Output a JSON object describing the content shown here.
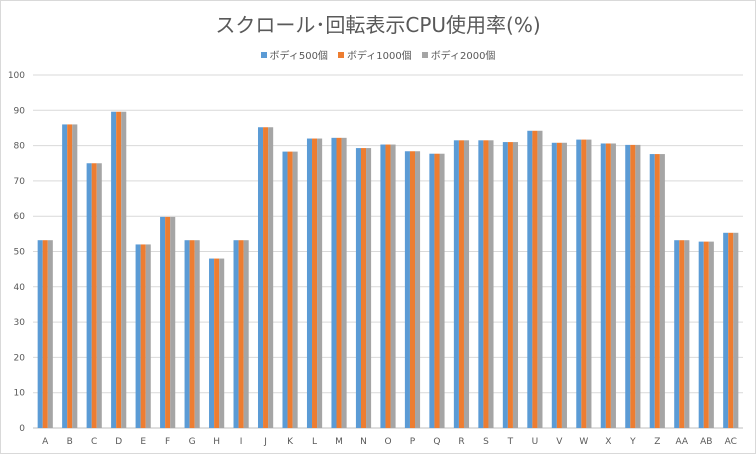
{
  "chart_data": {
    "type": "bar",
    "title": "スクロール･回転表示CPU使用率(%)",
    "categories": [
      "A",
      "B",
      "C",
      "D",
      "E",
      "F",
      "G",
      "H",
      "I",
      "J",
      "K",
      "L",
      "M",
      "N",
      "O",
      "P",
      "Q",
      "R",
      "S",
      "T",
      "U",
      "V",
      "W",
      "X",
      "Y",
      "Z",
      "AA",
      "AB",
      "AC"
    ],
    "series": [
      {
        "name": "ボディ500個",
        "color": "#5b9bd5",
        "values": [
          53.2,
          86.0,
          75.0,
          89.6,
          52.0,
          59.8,
          53.2,
          48.0,
          53.2,
          85.2,
          78.3,
          82.0,
          82.2,
          79.3,
          80.3,
          78.4,
          77.7,
          81.5,
          81.5,
          81.0,
          84.2,
          80.8,
          81.7,
          80.6,
          80.2,
          77.6,
          53.2,
          52.8,
          55.3
        ]
      },
      {
        "name": "ボディ1000個",
        "color": "#ed7d31",
        "values": [
          53.2,
          86.0,
          75.0,
          89.6,
          52.0,
          59.8,
          53.2,
          48.0,
          53.2,
          85.2,
          78.3,
          82.0,
          82.2,
          79.3,
          80.3,
          78.4,
          77.7,
          81.5,
          81.5,
          81.0,
          84.2,
          80.8,
          81.7,
          80.6,
          80.2,
          77.6,
          53.2,
          52.8,
          55.3
        ]
      },
      {
        "name": "ボディ2000個",
        "color": "#a5a5a5",
        "values": [
          53.2,
          86.0,
          75.0,
          89.6,
          52.0,
          59.8,
          53.2,
          48.0,
          53.2,
          85.2,
          78.3,
          82.0,
          82.2,
          79.3,
          80.3,
          78.4,
          77.7,
          81.5,
          81.5,
          81.0,
          84.2,
          80.8,
          81.7,
          80.6,
          80.2,
          77.6,
          53.2,
          52.8,
          55.3
        ]
      }
    ],
    "ylim": [
      0,
      100
    ],
    "yticks": [
      0,
      10,
      20,
      30,
      40,
      50,
      60,
      70,
      80,
      90,
      100
    ],
    "grid": true,
    "legend_position": "top-center"
  }
}
